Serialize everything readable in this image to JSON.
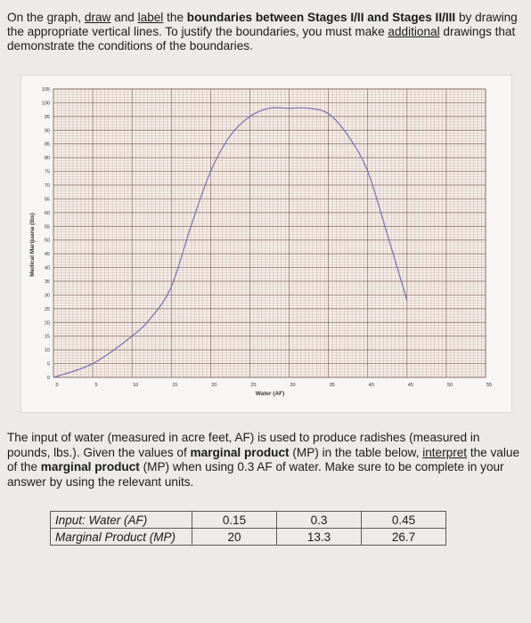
{
  "instructions": {
    "p1": "On the graph, ",
    "draw": "draw",
    "and": " and ",
    "label": "label",
    "p2": " the ",
    "b1": "boundaries between Stages I/II and Stages II/III",
    "p3": " by drawing the appropriate vertical lines. To justify the boundaries, you must make ",
    "additional": "additional",
    "p4": " drawings that demonstrate the conditions of the boundaries."
  },
  "chart_data": {
    "type": "line",
    "title": "",
    "xlabel": "Water (AF)",
    "ylabel": "Medical Marijuana (lbs)",
    "xlim": [
      0,
      55
    ],
    "ylim": [
      0,
      105
    ],
    "xticks": [
      "0",
      "5",
      "10",
      "15",
      "20",
      "25",
      "30",
      "35",
      "40",
      "45",
      "50",
      "55"
    ],
    "yticks": [
      "0",
      "5",
      "10",
      "15",
      "20",
      "25",
      "30",
      "35",
      "40",
      "45",
      "50",
      "55",
      "60",
      "65",
      "70",
      "75",
      "80",
      "85",
      "90",
      "95",
      "100",
      "105"
    ],
    "grid": true,
    "line_color": "#7a6fb0",
    "series": [
      {
        "x": [
          0,
          5,
          10,
          12.5,
          15,
          17.5,
          20,
          22.5,
          25,
          27.5,
          30,
          32.5,
          35,
          37.5,
          40,
          42.5,
          45
        ],
        "y": [
          0,
          5,
          15,
          22,
          33,
          55,
          75,
          88,
          95,
          98,
          98,
          98,
          96,
          88,
          75,
          52,
          28
        ]
      }
    ]
  },
  "question": {
    "p1": "The input of water (measured in acre feet, AF) is used to produce radishes (measured in pounds, lbs.). Given the values of ",
    "b1": "marginal product",
    "p2": " (MP) in the table below, ",
    "interpret": "interpret",
    "p3": " the value of the ",
    "b2": "marginal product",
    "p4": " (MP) when using 0.3 AF of water. Make sure to be complete in your answer by using the relevant units."
  },
  "table": {
    "input_label": "Input: Water (AF)",
    "mp_label": "Marginal Product (MP)",
    "inputs": [
      "0.15",
      "0.3",
      "0.45"
    ],
    "mps": [
      "20",
      "13.3",
      "26.7"
    ]
  }
}
